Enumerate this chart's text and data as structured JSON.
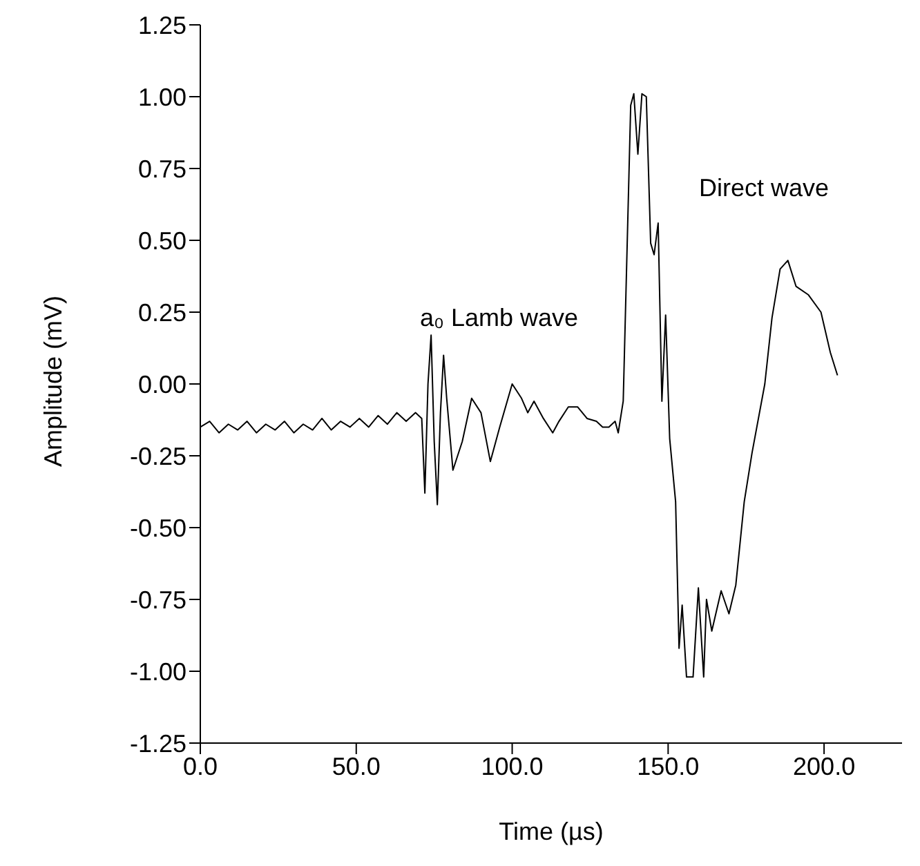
{
  "chart_data": {
    "type": "line",
    "xlabel": "Time (µs)",
    "ylabel": "Amplitude (mV)",
    "annotations": [
      "a₀ Lamb wave",
      "Direct wave"
    ],
    "xlim": [
      0,
      225
    ],
    "xticks": [
      {
        "value": 0,
        "label": "0.0"
      },
      {
        "value": 50,
        "label": "50.0"
      },
      {
        "value": 100,
        "label": "100.0"
      },
      {
        "value": 150,
        "label": "150.0"
      },
      {
        "value": 200,
        "label": "200.0"
      }
    ],
    "ylim": [
      -1.25,
      1.25
    ],
    "yticks": [
      {
        "value": -1.25,
        "label": "-1.25"
      },
      {
        "value": -1,
        "label": "-1.00"
      },
      {
        "value": -0.75,
        "label": "-0.75"
      },
      {
        "value": -0.5,
        "label": "-0.50"
      },
      {
        "value": -0.25,
        "label": "-0.25"
      },
      {
        "value": 0,
        "label": "0.00"
      },
      {
        "value": 0.25,
        "label": "0.25"
      },
      {
        "value": 0.5,
        "label": "0.50"
      },
      {
        "value": 0.75,
        "label": "0.75"
      },
      {
        "value": 1,
        "label": "1.00"
      },
      {
        "value": 1.25,
        "label": "1.25"
      }
    ],
    "marker": "none",
    "line_style": "solid",
    "series": [
      {
        "color": "#000000",
        "x": [
          0,
          3,
          6,
          9,
          12,
          15,
          18,
          21,
          24,
          27,
          30,
          33,
          36,
          39,
          42,
          45,
          48,
          51,
          54,
          57,
          60,
          63,
          66,
          69,
          71,
          72,
          73,
          74,
          75,
          76,
          77,
          78,
          79,
          81,
          84,
          87,
          90,
          93,
          96,
          100,
          103,
          105,
          107,
          110,
          113,
          115,
          118,
          121,
          124,
          127,
          129,
          131,
          133,
          134,
          135.6,
          138,
          139,
          140.3,
          141.6,
          143,
          144.4,
          145.5,
          146.8,
          148,
          149.2,
          150.5,
          152.4,
          153.5,
          154.5,
          155.9,
          158,
          159.7,
          161.4,
          162.3,
          164,
          167,
          169.5,
          171.7,
          174.4,
          176.9,
          181,
          183.3,
          185.9,
          188.4,
          191,
          195,
          199,
          202,
          204.3
        ],
        "values": [
          -0.15,
          -0.13,
          -0.17,
          -0.14,
          -0.16,
          -0.13,
          -0.17,
          -0.14,
          -0.16,
          -0.13,
          -0.17,
          -0.14,
          -0.16,
          -0.12,
          -0.16,
          -0.13,
          -0.15,
          -0.12,
          -0.15,
          -0.11,
          -0.14,
          -0.1,
          -0.13,
          -0.1,
          -0.12,
          -0.38,
          0.0,
          0.17,
          -0.2,
          -0.42,
          -0.1,
          0.1,
          -0.05,
          -0.3,
          -0.2,
          -0.05,
          -0.1,
          -0.27,
          -0.15,
          0.0,
          -0.05,
          -0.1,
          -0.06,
          -0.12,
          -0.17,
          -0.13,
          -0.08,
          -0.08,
          -0.12,
          -0.13,
          -0.15,
          -0.15,
          -0.13,
          -0.17,
          -0.06,
          0.97,
          1.01,
          0.8,
          1.01,
          1.0,
          0.49,
          0.45,
          0.56,
          -0.06,
          0.24,
          -0.19,
          -0.41,
          -0.92,
          -0.77,
          -1.02,
          -1.02,
          -0.71,
          -1.02,
          -0.75,
          -0.86,
          -0.72,
          -0.8,
          -0.7,
          -0.41,
          -0.24,
          0.0,
          0.23,
          0.4,
          0.43,
          0.34,
          0.31,
          0.25,
          0.11,
          0.03
        ]
      }
    ]
  }
}
